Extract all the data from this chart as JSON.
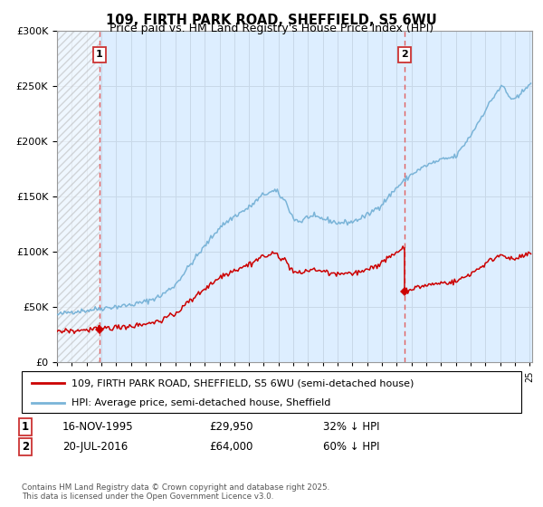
{
  "title_line1": "109, FIRTH PARK ROAD, SHEFFIELD, S5 6WU",
  "title_line2": "Price paid vs. HM Land Registry's House Price Index (HPI)",
  "purchase1_year": 1995.88,
  "purchase1_price": 29950,
  "purchase2_year": 2016.55,
  "purchase2_price": 64000,
  "legend_property": "109, FIRTH PARK ROAD, SHEFFIELD, S5 6WU (semi-detached house)",
  "legend_hpi": "HPI: Average price, semi-detached house, Sheffield",
  "note1_text": "16-NOV-1995",
  "note1_price": "£29,950",
  "note1_hpi": "32% ↓ HPI",
  "note2_text": "20-JUL-2016",
  "note2_price": "£64,000",
  "note2_hpi": "60% ↓ HPI",
  "footer": "Contains HM Land Registry data © Crown copyright and database right 2025.\nThis data is licensed under the Open Government Licence v3.0.",
  "ymax": 300000,
  "property_color": "#cc0000",
  "hpi_color": "#7ab4d8",
  "vline_color": "#e06060",
  "grid_color": "#c8d8e8",
  "bg_color": "#ddeeff",
  "hatch_color": "#aaaaaa"
}
